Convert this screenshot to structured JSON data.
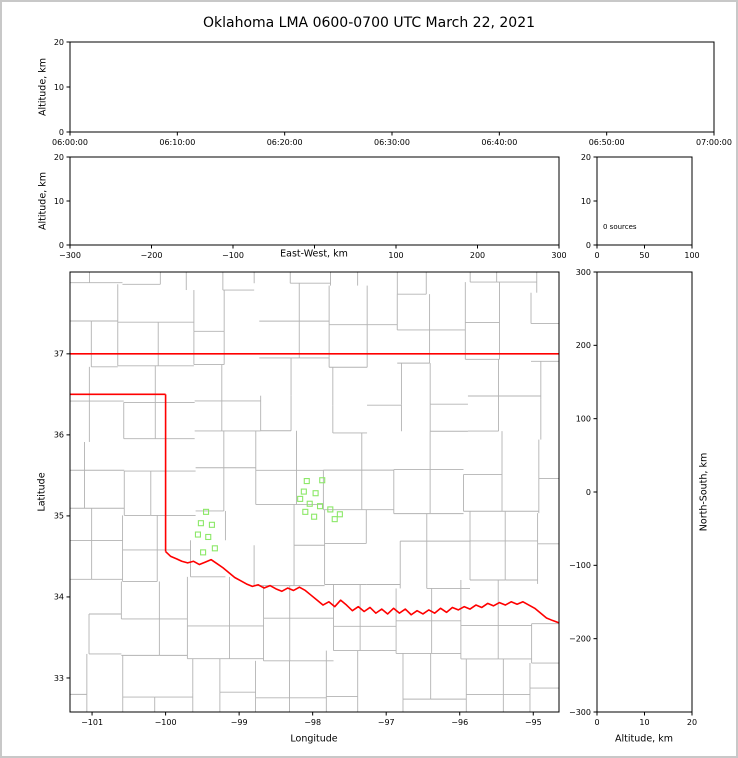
{
  "title": "Oklahoma LMA 0600-0700 UTC March 22, 2021",
  "colors": {
    "background": "#ffffff",
    "frame_border": "#c8c8c8",
    "axis": "#000000",
    "county_lines": "#b3b3b3",
    "state_border": "#ff0000",
    "source_marker": "#8ce868"
  },
  "chart_data": [
    {
      "id": "time_height",
      "type": "scatter",
      "description": "Lightning source altitude vs time panel (no points plotted)",
      "xlabel": "",
      "ylabel": "Altitude, km",
      "xlim": [
        0,
        3600
      ],
      "ylim": [
        0,
        20
      ],
      "xticks": [
        {
          "v": 0,
          "label": "06:00:00"
        },
        {
          "v": 600,
          "label": "06:10:00"
        },
        {
          "v": 1200,
          "label": "06:20:00"
        },
        {
          "v": 1800,
          "label": "06:30:00"
        },
        {
          "v": 2400,
          "label": "06:40:00"
        },
        {
          "v": 3000,
          "label": "06:50:00"
        },
        {
          "v": 3600,
          "label": "07:00:00"
        }
      ],
      "yticks": [
        {
          "v": 0,
          "label": "0"
        },
        {
          "v": 10,
          "label": "10"
        },
        {
          "v": 20,
          "label": "20"
        }
      ],
      "points": []
    },
    {
      "id": "ew_height",
      "type": "scatter",
      "description": "Altitude vs east-west distance panel (no points plotted)",
      "xlabel": "East-West, km",
      "ylabel": "Altitude, km",
      "xlim": [
        -300,
        300
      ],
      "ylim": [
        0,
        20
      ],
      "xticks": [
        {
          "v": -300,
          "label": "−300"
        },
        {
          "v": -200,
          "label": "−200"
        },
        {
          "v": -100,
          "label": "−100"
        },
        {
          "v": 0,
          "label": ""
        },
        {
          "v": 100,
          "label": "100"
        },
        {
          "v": 200,
          "label": "200"
        },
        {
          "v": 300,
          "label": "300"
        }
      ],
      "yticks": [
        {
          "v": 0,
          "label": "0"
        },
        {
          "v": 10,
          "label": "10"
        },
        {
          "v": 20,
          "label": "20"
        }
      ],
      "points": []
    },
    {
      "id": "histogram",
      "type": "line",
      "description": "Altitude histogram panel (empty)",
      "annotation": "0 sources",
      "xlabel": "",
      "ylabel": "",
      "xlim": [
        0,
        100
      ],
      "ylim": [
        0,
        20
      ],
      "xticks": [
        {
          "v": 0,
          "label": "0"
        },
        {
          "v": 50,
          "label": "50"
        },
        {
          "v": 100,
          "label": "100"
        }
      ],
      "yticks": [
        {
          "v": 0,
          "label": "0"
        },
        {
          "v": 10,
          "label": "10"
        },
        {
          "v": 20,
          "label": "20"
        }
      ],
      "points": []
    },
    {
      "id": "map",
      "type": "scatter",
      "description": "Plan-view map of Oklahoma with county lines, red state border and lightning source markers",
      "xlabel": "Longitude",
      "ylabel": "Latitude",
      "xlim": [
        -101.3,
        -94.65
      ],
      "ylim": [
        32.58,
        38.01
      ],
      "xticks": [
        {
          "v": -101,
          "label": "−101"
        },
        {
          "v": -100,
          "label": "−100"
        },
        {
          "v": -99,
          "label": "−99"
        },
        {
          "v": -98,
          "label": "−98"
        },
        {
          "v": -97,
          "label": "−97"
        },
        {
          "v": -96,
          "label": "−96"
        },
        {
          "v": -95,
          "label": "−95"
        }
      ],
      "yticks": [
        {
          "v": 33,
          "label": "33"
        },
        {
          "v": 34,
          "label": "34"
        },
        {
          "v": 35,
          "label": "35"
        },
        {
          "v": 36,
          "label": "36"
        },
        {
          "v": 37,
          "label": "37"
        }
      ],
      "marker": "open-square",
      "sources_lon_lat": [
        [
          -99.45,
          35.05
        ],
        [
          -99.52,
          34.91
        ],
        [
          -99.37,
          34.89
        ],
        [
          -99.56,
          34.77
        ],
        [
          -99.42,
          34.74
        ],
        [
          -99.33,
          34.6
        ],
        [
          -99.49,
          34.55
        ],
        [
          -98.08,
          35.43
        ],
        [
          -97.87,
          35.44
        ],
        [
          -98.12,
          35.3
        ],
        [
          -97.96,
          35.28
        ],
        [
          -98.17,
          35.21
        ],
        [
          -98.04,
          35.15
        ],
        [
          -97.9,
          35.12
        ],
        [
          -98.1,
          35.05
        ],
        [
          -97.76,
          35.08
        ],
        [
          -97.63,
          35.02
        ],
        [
          -97.98,
          34.99
        ],
        [
          -97.7,
          34.96
        ]
      ],
      "oklahoma_border": {
        "north_lat": 37.0,
        "panhandle_south_lat": 36.5,
        "west_lon": -100.0,
        "west_lon_south_lat": 34.56,
        "red_river_lon_lat": [
          [
            -100.0,
            34.56
          ],
          [
            -99.93,
            34.5
          ],
          [
            -99.85,
            34.47
          ],
          [
            -99.78,
            34.44
          ],
          [
            -99.7,
            34.42
          ],
          [
            -99.62,
            34.44
          ],
          [
            -99.54,
            34.4
          ],
          [
            -99.46,
            34.43
          ],
          [
            -99.38,
            34.46
          ],
          [
            -99.3,
            34.41
          ],
          [
            -99.22,
            34.36
          ],
          [
            -99.14,
            34.3
          ],
          [
            -99.06,
            34.24
          ],
          [
            -98.98,
            34.2
          ],
          [
            -98.9,
            34.16
          ],
          [
            -98.82,
            34.13
          ],
          [
            -98.74,
            34.15
          ],
          [
            -98.66,
            34.11
          ],
          [
            -98.58,
            34.14
          ],
          [
            -98.5,
            34.1
          ],
          [
            -98.42,
            34.07
          ],
          [
            -98.34,
            34.11
          ],
          [
            -98.26,
            34.08
          ],
          [
            -98.18,
            34.12
          ],
          [
            -98.1,
            34.08
          ],
          [
            -98.02,
            34.02
          ],
          [
            -97.94,
            33.96
          ],
          [
            -97.86,
            33.9
          ],
          [
            -97.78,
            33.94
          ],
          [
            -97.7,
            33.88
          ],
          [
            -97.62,
            33.96
          ],
          [
            -97.54,
            33.9
          ],
          [
            -97.46,
            33.83
          ],
          [
            -97.38,
            33.88
          ],
          [
            -97.3,
            33.82
          ],
          [
            -97.22,
            33.87
          ],
          [
            -97.14,
            33.8
          ],
          [
            -97.06,
            33.85
          ],
          [
            -96.98,
            33.79
          ],
          [
            -96.9,
            33.86
          ],
          [
            -96.82,
            33.8
          ],
          [
            -96.74,
            33.85
          ],
          [
            -96.66,
            33.78
          ],
          [
            -96.58,
            33.83
          ],
          [
            -96.5,
            33.79
          ],
          [
            -96.42,
            33.84
          ],
          [
            -96.34,
            33.8
          ],
          [
            -96.26,
            33.86
          ],
          [
            -96.18,
            33.81
          ],
          [
            -96.1,
            33.87
          ],
          [
            -96.02,
            33.84
          ],
          [
            -95.94,
            33.88
          ],
          [
            -95.86,
            33.85
          ],
          [
            -95.78,
            33.9
          ],
          [
            -95.7,
            33.87
          ],
          [
            -95.62,
            33.92
          ],
          [
            -95.54,
            33.89
          ],
          [
            -95.46,
            33.93
          ],
          [
            -95.38,
            33.9
          ],
          [
            -95.3,
            33.94
          ],
          [
            -95.22,
            33.91
          ],
          [
            -95.14,
            33.94
          ],
          [
            -95.06,
            33.9
          ],
          [
            -94.98,
            33.86
          ],
          [
            -94.9,
            33.8
          ],
          [
            -94.82,
            33.74
          ],
          [
            -94.74,
            33.71
          ],
          [
            -94.65,
            33.68
          ]
        ]
      }
    },
    {
      "id": "ns_height",
      "type": "scatter",
      "description": "North-south distance vs altitude panel (no points plotted)",
      "xlabel": "Altitude, km",
      "ylabel": "North-South, km",
      "xlim": [
        0,
        20
      ],
      "ylim": [
        -300,
        300
      ],
      "xticks": [
        {
          "v": 0,
          "label": "0"
        },
        {
          "v": 10,
          "label": "10"
        },
        {
          "v": 20,
          "label": "20"
        }
      ],
      "yticks": [
        {
          "v": -300,
          "label": "−300"
        },
        {
          "v": -200,
          "label": "−200"
        },
        {
          "v": -100,
          "label": "−100"
        },
        {
          "v": 0,
          "label": "0"
        },
        {
          "v": 100,
          "label": "100"
        },
        {
          "v": 200,
          "label": "200"
        },
        {
          "v": 300,
          "label": "300"
        }
      ],
      "points": []
    }
  ]
}
